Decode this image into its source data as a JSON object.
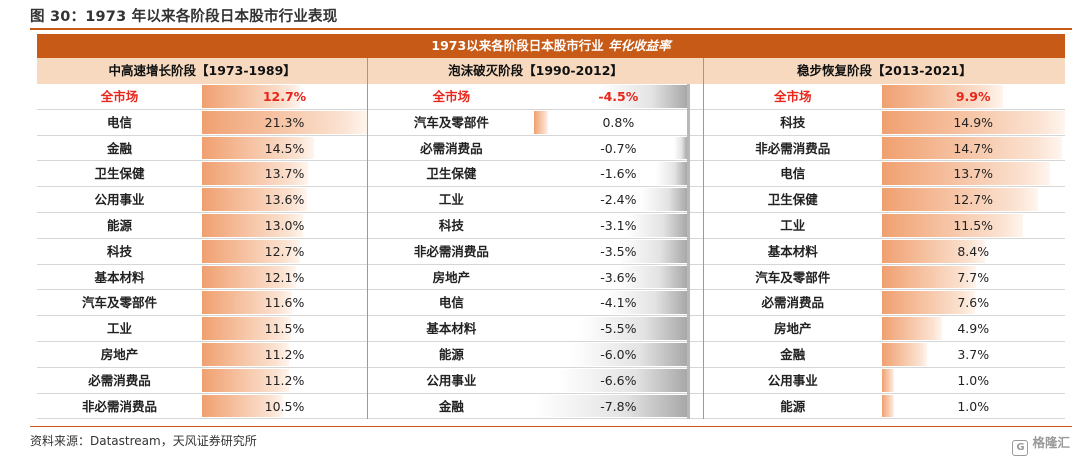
{
  "figure_title": "图 30：1973 年以来各阶段日本股市行业表现",
  "banner": {
    "main": "1973以来各阶段日本股市行业",
    "italic": "年化收益率"
  },
  "periods": [
    {
      "header": "中高速增长阶段【1973-1989】",
      "rows": [
        {
          "name": "全市场",
          "value": "12.7%",
          "num": 12.7,
          "highlight": true
        },
        {
          "name": "电信",
          "value": "21.3%",
          "num": 21.3
        },
        {
          "name": "金融",
          "value": "14.5%",
          "num": 14.5
        },
        {
          "name": "卫生保健",
          "value": "13.7%",
          "num": 13.7
        },
        {
          "name": "公用事业",
          "value": "13.6%",
          "num": 13.6
        },
        {
          "name": "能源",
          "value": "13.0%",
          "num": 13.0
        },
        {
          "name": "科技",
          "value": "12.7%",
          "num": 12.7
        },
        {
          "name": "基本材料",
          "value": "12.1%",
          "num": 12.1
        },
        {
          "name": "汽车及零部件",
          "value": "11.6%",
          "num": 11.6
        },
        {
          "name": "工业",
          "value": "11.5%",
          "num": 11.5
        },
        {
          "name": "房地产",
          "value": "11.2%",
          "num": 11.2
        },
        {
          "name": "必需消费品",
          "value": "11.2%",
          "num": 11.2
        },
        {
          "name": "非必需消费品",
          "value": "10.5%",
          "num": 10.5
        }
      ]
    },
    {
      "header": "泡沫破灭阶段【1990-2012】",
      "rows": [
        {
          "name": "全市场",
          "value": "-4.5%",
          "num": -4.5,
          "highlight": true
        },
        {
          "name": "汽车及零部件",
          "value": "0.8%",
          "num": 0.8
        },
        {
          "name": "必需消费品",
          "value": "-0.7%",
          "num": -0.7
        },
        {
          "name": "卫生保健",
          "value": "-1.6%",
          "num": -1.6
        },
        {
          "name": "工业",
          "value": "-2.4%",
          "num": -2.4
        },
        {
          "name": "科技",
          "value": "-3.1%",
          "num": -3.1
        },
        {
          "name": "非必需消费品",
          "value": "-3.5%",
          "num": -3.5
        },
        {
          "name": "房地产",
          "value": "-3.6%",
          "num": -3.6
        },
        {
          "name": "电信",
          "value": "-4.1%",
          "num": -4.1
        },
        {
          "name": "基本材料",
          "value": "-5.5%",
          "num": -5.5
        },
        {
          "name": "能源",
          "value": "-6.0%",
          "num": -6.0
        },
        {
          "name": "公用事业",
          "value": "-6.6%",
          "num": -6.6
        },
        {
          "name": "金融",
          "value": "-7.8%",
          "num": -7.8
        }
      ]
    },
    {
      "header": "稳步恢复阶段【2013-2021】",
      "rows": [
        {
          "name": "全市场",
          "value": "9.9%",
          "num": 9.9,
          "highlight": true
        },
        {
          "name": "科技",
          "value": "14.9%",
          "num": 14.9
        },
        {
          "name": "非必需消费品",
          "value": "14.7%",
          "num": 14.7
        },
        {
          "name": "电信",
          "value": "13.7%",
          "num": 13.7
        },
        {
          "name": "卫生保健",
          "value": "12.7%",
          "num": 12.7
        },
        {
          "name": "工业",
          "value": "11.5%",
          "num": 11.5
        },
        {
          "name": "基本材料",
          "value": "8.4%",
          "num": 8.4
        },
        {
          "name": "汽车及零部件",
          "value": "7.7%",
          "num": 7.7
        },
        {
          "name": "必需消费品",
          "value": "7.6%",
          "num": 7.6
        },
        {
          "name": "房地产",
          "value": "4.9%",
          "num": 4.9
        },
        {
          "name": "金融",
          "value": "3.7%",
          "num": 3.7
        },
        {
          "name": "公用事业",
          "value": "1.0%",
          "num": 1.0
        },
        {
          "name": "能源",
          "value": "1.0%",
          "num": 1.0
        }
      ]
    }
  ],
  "source": "资料来源：Datastream，天风证券研究所",
  "watermark": "格隆汇",
  "colors": {
    "accent": "#c75a16",
    "header_fill": "#f6d9bf",
    "highlight_text": "#e8261b",
    "positive_bar": "#f0a070",
    "negative_bar": "#a8a8a8"
  }
}
